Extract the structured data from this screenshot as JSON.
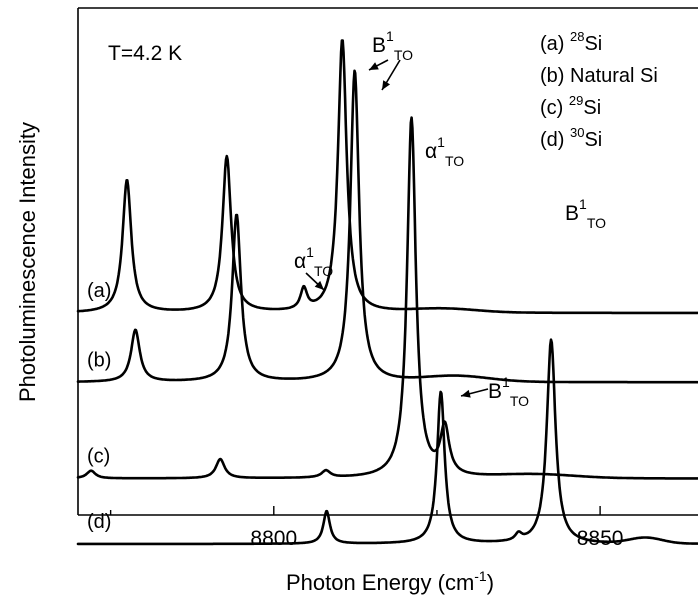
{
  "chart_data": {
    "type": "line",
    "title": "",
    "xlabel": "Photon Energy (cm",
    "xlabel_sup": "-1",
    "xlabel_close": ")",
    "ylabel": "Photoluminescence Intensity",
    "xlim": [
      8770,
      8865
    ],
    "x_ticks": [
      8800,
      8850
    ],
    "x_tick_labels": [
      "8800",
      "8850"
    ],
    "temperature_label": "T=4.2 K",
    "series": [
      {
        "name": "(a) 28Si",
        "label": "(a)",
        "baseline": 0.0,
        "peaks": [
          [
            8777.5,
            3.45,
            0.8
          ],
          [
            8792.8,
            4.05,
            0.8
          ],
          [
            8804.6,
            0.55,
            0.6
          ],
          [
            8810.5,
            7.1,
            0.8
          ]
        ],
        "bump": [
          8826,
          0.1,
          5
        ]
      },
      {
        "name": "(b) Natural Si",
        "label": "(b)",
        "baseline": -1.8,
        "peaks": [
          [
            8778.8,
            1.35,
            0.8
          ],
          [
            8794.3,
            4.35,
            0.8
          ],
          [
            8812.4,
            8.1,
            0.8
          ]
        ],
        "bump": [
          8828,
          0.15,
          5
        ]
      },
      {
        "name": "(c) 29Si",
        "label": "(c)",
        "baseline": -4.3,
        "peaks": [
          [
            8772,
            0.2,
            0.8
          ],
          [
            8791.8,
            0.5,
            0.8
          ],
          [
            8808,
            0.18,
            0.8
          ],
          [
            8821.1,
            9.35,
            0.8
          ],
          [
            8826.2,
            1.25,
            0.8
          ]
        ],
        "bump": [
          8840,
          0.1,
          6
        ]
      },
      {
        "name": "(d) 30Si",
        "label": "(d)",
        "baseline": -6.0,
        "peaks": [
          [
            8808.1,
            0.85,
            0.6
          ],
          [
            8825.6,
            3.95,
            0.7
          ],
          [
            8837.5,
            0.18,
            0.6
          ],
          [
            8842.5,
            5.3,
            0.8
          ]
        ],
        "bump": [
          8857,
          0.15,
          2.5
        ]
      }
    ],
    "annotations": [
      {
        "id": "B1TO-ab",
        "base": "B",
        "sup": "1",
        "sub": "TO"
      },
      {
        "id": "alpha1TO-c",
        "base": "α",
        "sup": "1",
        "sub": "TO"
      },
      {
        "id": "alpha1TO-a",
        "base": "α",
        "sup": "1",
        "sub": "TO"
      },
      {
        "id": "B1TO-c",
        "base": "B",
        "sup": "1",
        "sub": "TO"
      },
      {
        "id": "B1TO-d",
        "base": "B",
        "sup": "1",
        "sub": "TO"
      }
    ],
    "legend_placement": "top-right",
    "legend": [
      {
        "prefix": "(a) ",
        "sup": "28",
        "text": "Si"
      },
      {
        "prefix": "(b) Natural Si",
        "sup": "",
        "text": ""
      },
      {
        "prefix": "(c) ",
        "sup": "29",
        "text": "Si"
      },
      {
        "prefix": "(d) ",
        "sup": "30",
        "text": "Si"
      }
    ]
  }
}
